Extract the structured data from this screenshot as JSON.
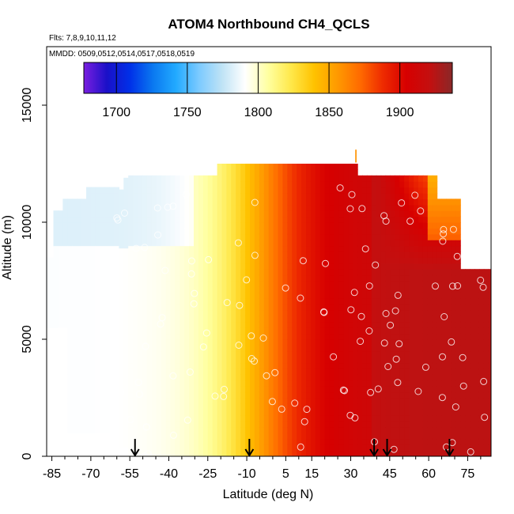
{
  "chart_data": {
    "type": "heatmap",
    "title": "ATOM4 Northbound CH4_QCLS",
    "subtitle_flights": "Flts: 7,8,9,10,11,12",
    "subtitle_dates": "MMDD: 0509,0512,0514,0517,0518,0519",
    "xlabel": "Latitude (deg N)",
    "ylabel": "Altitude (m)",
    "xlim": [
      -87,
      84
    ],
    "ylim": [
      0,
      17500
    ],
    "x_ticks": [
      -85,
      -70,
      -55,
      -40,
      -25,
      -10,
      5,
      15,
      30,
      45,
      60,
      75
    ],
    "x_tick_labels": [
      "-85",
      "-70",
      "-55",
      "-40",
      "-25",
      "-10",
      "5",
      "15",
      "30",
      "45",
      "60",
      "75"
    ],
    "y_ticks": [
      0,
      5000,
      10000,
      15000
    ],
    "y_tick_labels": [
      "0",
      "5000",
      "10000",
      "15000"
    ],
    "colorbar": {
      "range": [
        1677,
        1937
      ],
      "ticks": [
        1700,
        1750,
        1800,
        1850,
        1900
      ],
      "tick_labels": [
        "1700",
        "1750",
        "1800",
        "1850",
        "1900"
      ],
      "colors": [
        "#7a1fe0",
        "#1a10c8",
        "#0030e8",
        "#0a78f0",
        "#22aaff",
        "#7ccaff",
        "#bfe3f5",
        "#ffffff",
        "#ffffa0",
        "#ffe84a",
        "#ffc200",
        "#ff9a00",
        "#ff6a00",
        "#ee2a00",
        "#d70000",
        "#c40f0f",
        "#8a2828"
      ]
    },
    "arrows_latitude": [
      -53,
      -9,
      39,
      44,
      68
    ],
    "overflow_marker_latitude": 32
  }
}
